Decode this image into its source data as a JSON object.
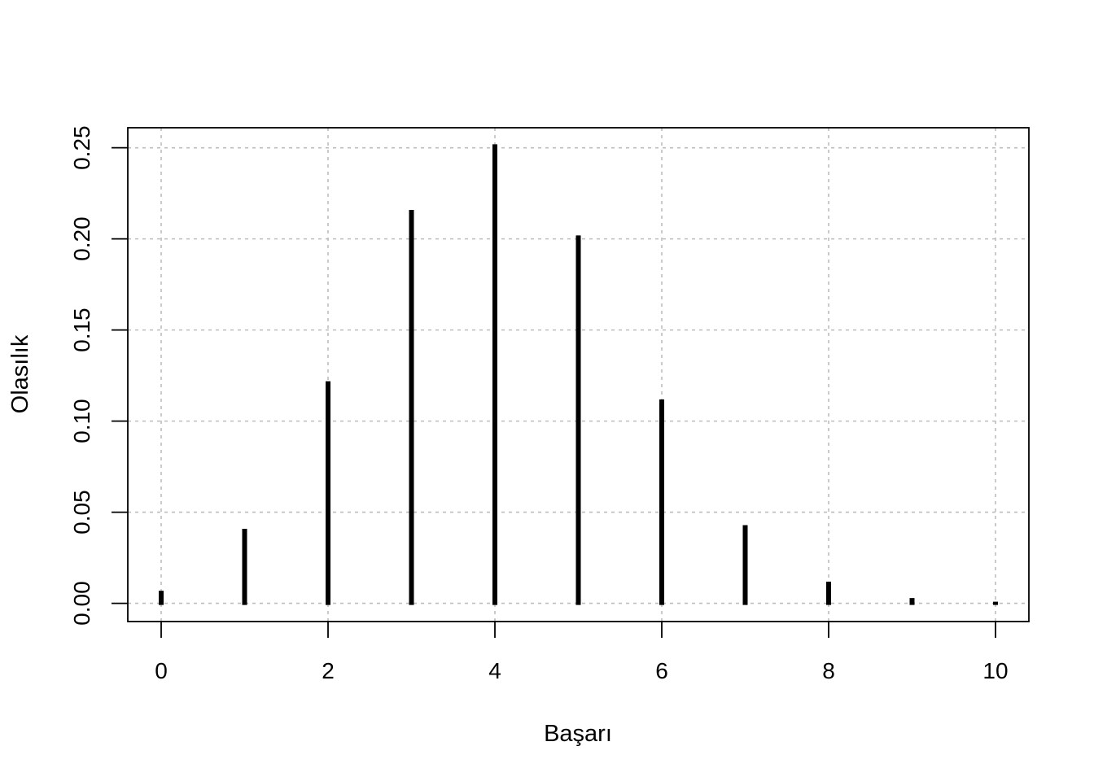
{
  "chart_data": {
    "type": "bar",
    "style": "vertical-lines",
    "x": [
      0,
      1,
      2,
      3,
      4,
      5,
      6,
      7,
      8,
      9,
      10
    ],
    "values": [
      0.006,
      0.04,
      0.121,
      0.215,
      0.251,
      0.201,
      0.111,
      0.042,
      0.011,
      0.002,
      0.0
    ],
    "xlabel": "Başarı",
    "ylabel": "Olasılık",
    "xlim": [
      -0.4,
      10.4
    ],
    "ylim": [
      -0.01,
      0.261
    ],
    "x_ticks": [
      0,
      2,
      4,
      6,
      8,
      10
    ],
    "x_tick_labels": [
      "0",
      "2",
      "4",
      "6",
      "8",
      "10"
    ],
    "y_ticks": [
      0.0,
      0.05,
      0.1,
      0.15,
      0.2,
      0.25
    ],
    "y_tick_labels": [
      "0.00",
      "0.05",
      "0.10",
      "0.15",
      "0.20",
      "0.25"
    ],
    "x_grid": [
      0,
      2,
      4,
      6,
      8,
      10
    ],
    "y_grid": [
      0.0,
      0.05,
      0.1,
      0.15,
      0.2,
      0.25
    ],
    "grid": true,
    "line_color": "#000000",
    "grid_color": "#bdbdbd"
  }
}
